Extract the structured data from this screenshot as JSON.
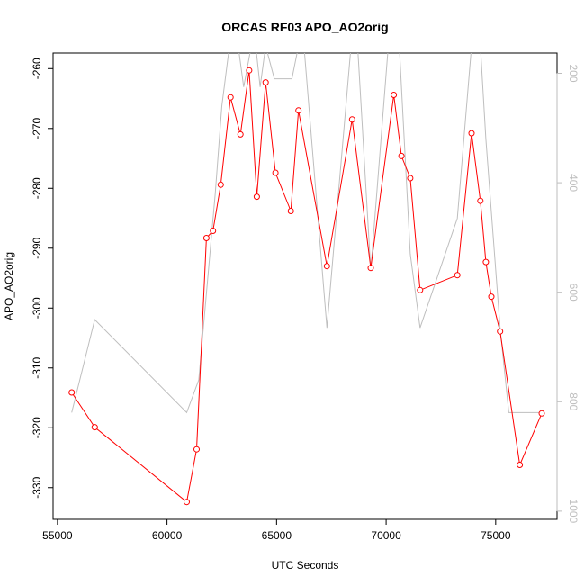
{
  "chart_data": {
    "type": "line",
    "title": "ORCAS RF03 APO_AO2orig",
    "xlabel": "UTC Seconds",
    "ylabel": "APO_AO2orig",
    "xlim": [
      54800,
      77800
    ],
    "ylim": [
      -335.3,
      -257.4
    ],
    "y2lim": [
      1015,
      163
    ],
    "x_ticks": [
      55000,
      60000,
      65000,
      70000,
      75000
    ],
    "y_ticks": [
      -330,
      -320,
      -310,
      -300,
      -290,
      -280,
      -270,
      -260
    ],
    "y2_ticks": [
      200,
      400,
      600,
      800,
      1000
    ],
    "grid": false,
    "legend": "none",
    "series": [
      {
        "color": "#ff0000",
        "marker": "open-circle",
        "x": [
          55650,
          56700,
          60900,
          61350,
          61800,
          62100,
          62450,
          62900,
          63350,
          63750,
          64100,
          64500,
          64950,
          65650,
          66000,
          67300,
          68450,
          69300,
          70350,
          70700,
          71100,
          71550,
          73250,
          73900,
          74300,
          74550,
          74800,
          75200,
          76100,
          77100
        ],
        "y": [
          -314.1,
          -319.9,
          -332.4,
          -323.6,
          -288.3,
          -287.1,
          -279.4,
          -264.8,
          -271.0,
          -260.3,
          -281.4,
          -262.3,
          -277.4,
          -283.8,
          -267.0,
          -293.0,
          -268.5,
          -293.3,
          -264.4,
          -274.6,
          -278.3,
          -297.0,
          -294.5,
          -270.8,
          -282.1,
          -292.3,
          -298.1,
          -303.9,
          -326.2,
          -317.6
        ]
      },
      {
        "color": "#bebebe",
        "axis": "right",
        "x": [
          55650,
          56700,
          60900,
          61450,
          62200,
          62500,
          62850,
          63100,
          63250,
          63500,
          63850,
          64050,
          64250,
          64500,
          64900,
          65700,
          66000,
          66250,
          67300,
          68400,
          68700,
          69300,
          70100,
          70350,
          70600,
          71100,
          71550,
          73250,
          73900,
          74300,
          74550,
          75200,
          75600,
          76200,
          77100
        ],
        "y": [
          820,
          650,
          820,
          760,
          420,
          260,
          150,
          150,
          150,
          225,
          150,
          150,
          225,
          150,
          210,
          210,
          150,
          150,
          665,
          150,
          150,
          560,
          150,
          150,
          150,
          530,
          665,
          465,
          150,
          150,
          320,
          665,
          820,
          820,
          820
        ]
      }
    ]
  }
}
